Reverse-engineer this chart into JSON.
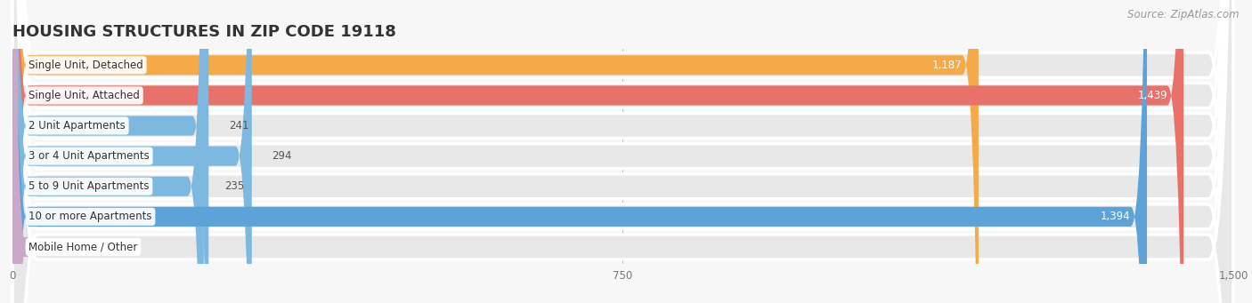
{
  "title": "HOUSING STRUCTURES IN ZIP CODE 19118",
  "source": "Source: ZipAtlas.com",
  "categories": [
    "Single Unit, Detached",
    "Single Unit, Attached",
    "2 Unit Apartments",
    "3 or 4 Unit Apartments",
    "5 to 9 Unit Apartments",
    "10 or more Apartments",
    "Mobile Home / Other"
  ],
  "values": [
    1187,
    1439,
    241,
    294,
    235,
    1394,
    7
  ],
  "bar_colors": [
    "#f5a947",
    "#e8726a",
    "#7db8e0",
    "#7db8e0",
    "#7db8e0",
    "#5ba3d9",
    "#c9a8c9"
  ],
  "row_bg_color": "#e8e8e8",
  "bg_color": "#f7f7f7",
  "xlim": [
    0,
    1500
  ],
  "xticks": [
    0,
    750,
    1500
  ],
  "title_fontsize": 13,
  "label_fontsize": 8.5,
  "value_fontsize": 8.5,
  "source_fontsize": 8.5,
  "bar_height": 0.65
}
